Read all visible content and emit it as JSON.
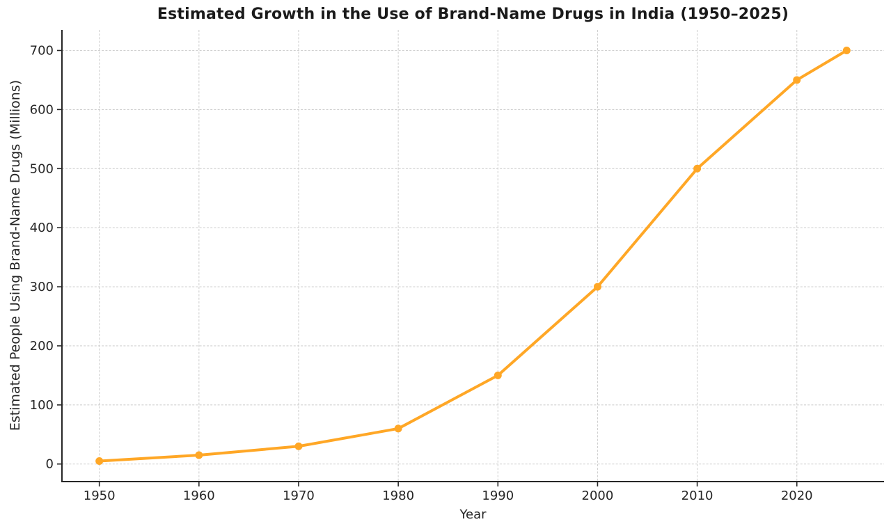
{
  "chart_data": {
    "type": "line",
    "title": "Estimated Growth in the Use of Brand-Name Drugs in India (1950–2025)",
    "xlabel": "Year",
    "ylabel": "Estimated People Using Brand-Name Drugs (Millions)",
    "x": [
      1950,
      1960,
      1970,
      1980,
      1990,
      2000,
      2010,
      2020,
      2025
    ],
    "values": [
      5,
      15,
      30,
      60,
      150,
      300,
      500,
      650,
      700
    ],
    "xlim": [
      1946.25,
      2028.75
    ],
    "ylim": [
      -29.75,
      734.75
    ],
    "x_tick_values": [
      1950,
      1960,
      1970,
      1980,
      1990,
      2000,
      2010,
      2020
    ],
    "x_tick_labels": [
      "1950",
      "1960",
      "1970",
      "1980",
      "1990",
      "2000",
      "2010",
      "2020"
    ],
    "y_tick_values": [
      0,
      100,
      200,
      300,
      400,
      500,
      600,
      700
    ],
    "y_tick_labels": [
      "0",
      "100",
      "200",
      "300",
      "400",
      "500",
      "600",
      "700"
    ],
    "grid": true,
    "grid_style": "dashed",
    "legend": "none",
    "marker": "circle",
    "colors": {
      "line": "#FFA726",
      "marker": "#FFA726",
      "grid": "#d0d0d0",
      "spine": "#262626",
      "tick": "#262626",
      "text": "#262626"
    }
  }
}
